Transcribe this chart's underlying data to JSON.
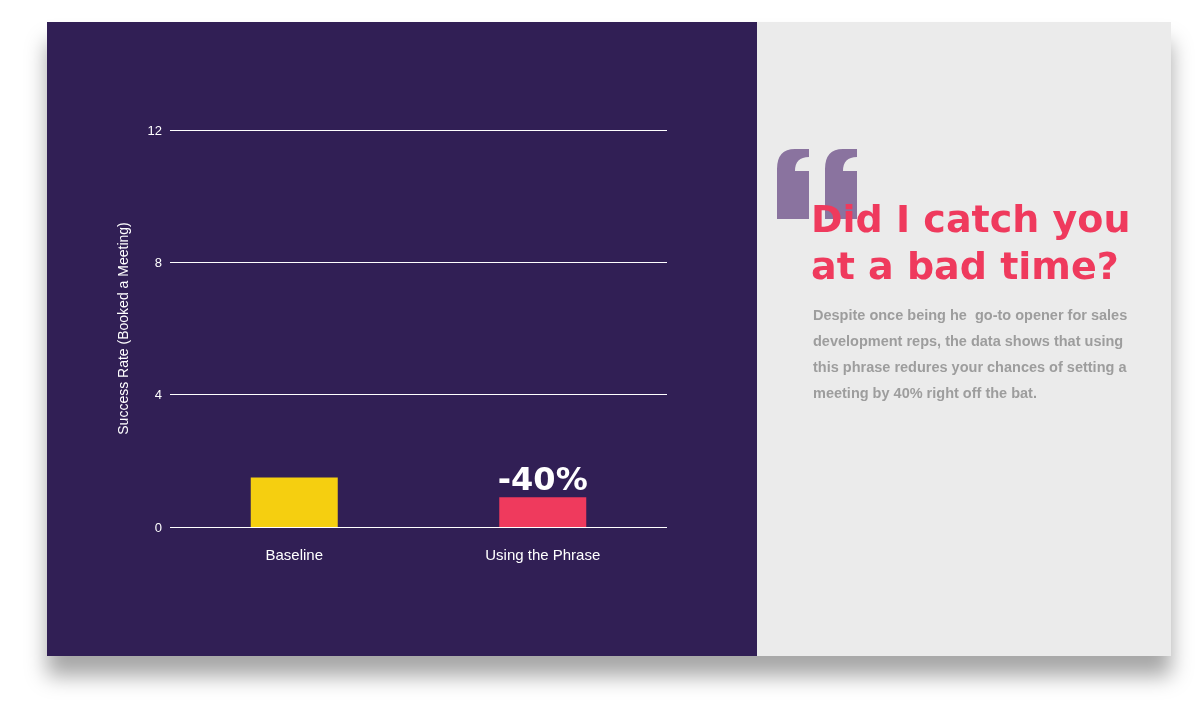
{
  "chart_data": {
    "type": "bar",
    "title": "Did I catch you at a bad time?",
    "ylabel": "Success Rate (Booked a Meeting)",
    "categories": [
      "Baseline",
      "Using the Phrase"
    ],
    "values": [
      1.5,
      0.9
    ],
    "colors": [
      "#f5cf10",
      "#ef3a5d"
    ],
    "ylim": [
      0,
      12
    ],
    "yticks": [
      0,
      4,
      8,
      12
    ],
    "grid": "y",
    "annotations": [
      {
        "text": "-40%",
        "x": "Using the Phrase",
        "y": 0.9
      },
      "Despite once being he  go-to opener for sales development reps, the data shows that using this phrase redures your chances of setting a meeting by 40% right off the bat."
    ]
  }
}
